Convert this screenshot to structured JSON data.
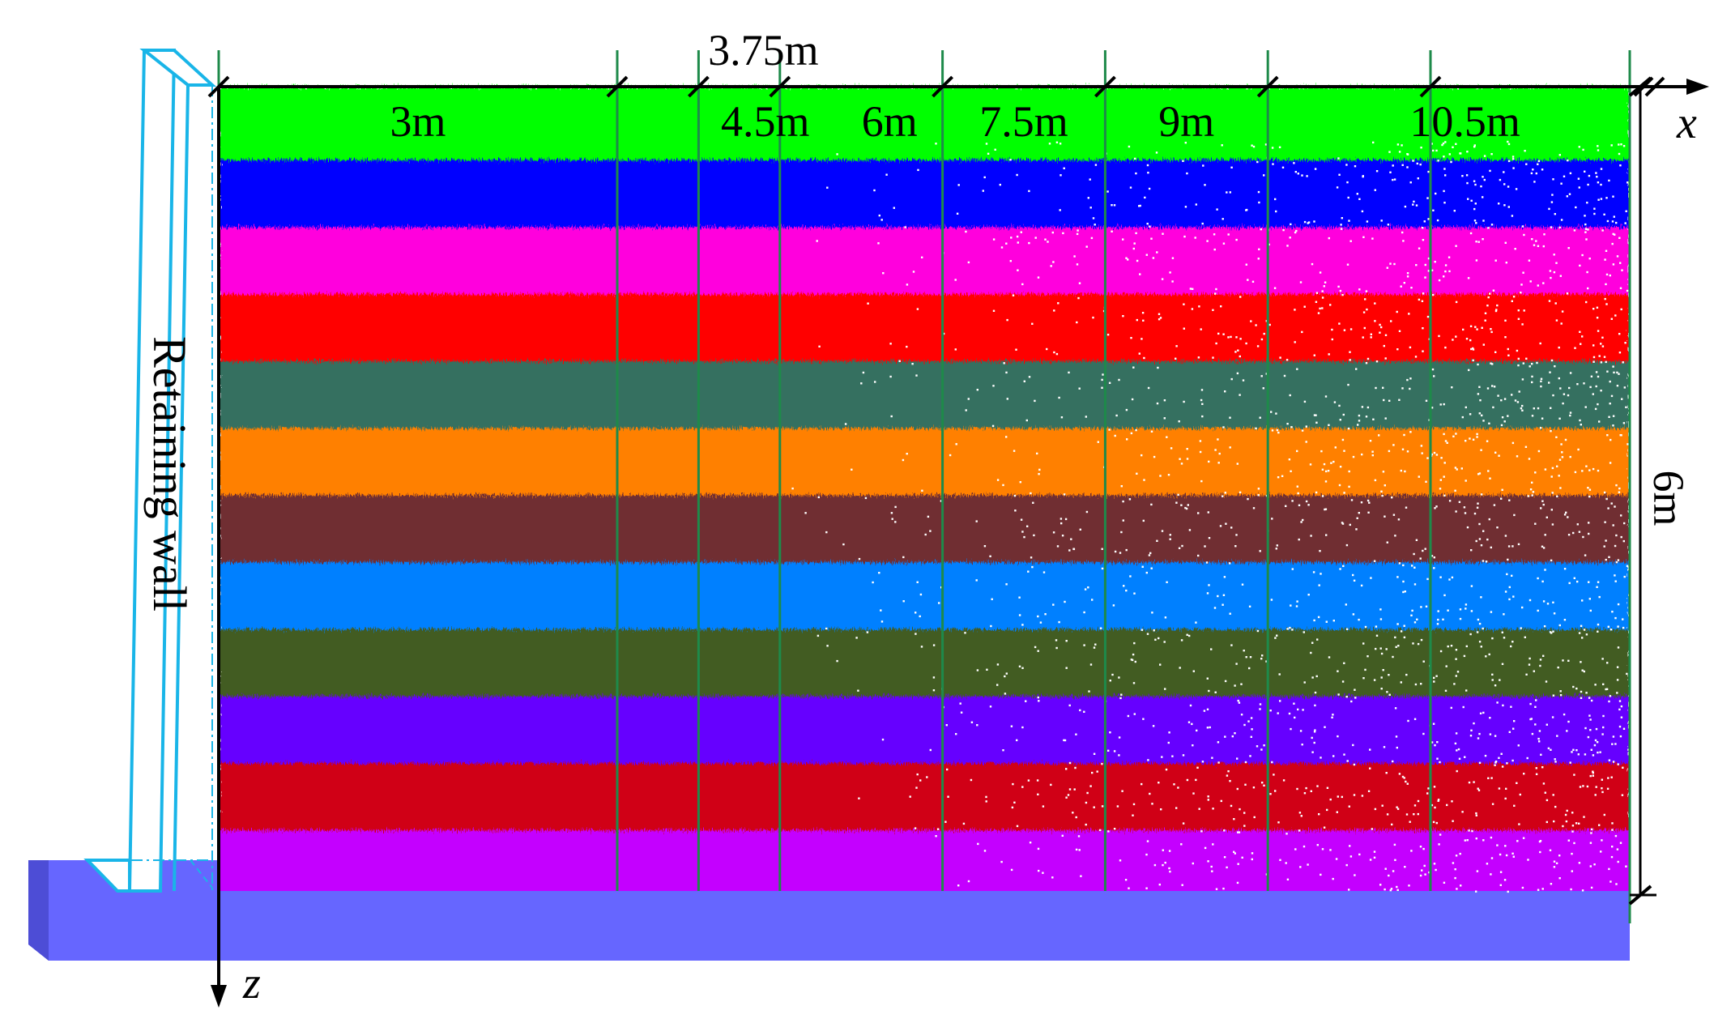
{
  "wall": {
    "label": "Retaining wall",
    "outline_color": "#19b5e8",
    "base_color": "#6666ff"
  },
  "axes": {
    "x_label": "x",
    "z_label": "z"
  },
  "dimensions": {
    "height_label": "6m",
    "x_positions_m": [
      3,
      3.75,
      4.5,
      6,
      7.5,
      9,
      10.5
    ],
    "x_labels": [
      "3m",
      "3.75m",
      "4.5m",
      "6m",
      "7.5m",
      "9m",
      "10.5m"
    ],
    "section_line_color": "#1e8a4a"
  },
  "layers": {
    "count": 12,
    "colors": [
      "#00ff00",
      "#0000ff",
      "#ff00dd",
      "#ff0000",
      "#357060",
      "#ff8000",
      "#702d33",
      "#0080ff",
      "#435c24",
      "#6600ff",
      "#d00018",
      "#c400ff"
    ]
  }
}
